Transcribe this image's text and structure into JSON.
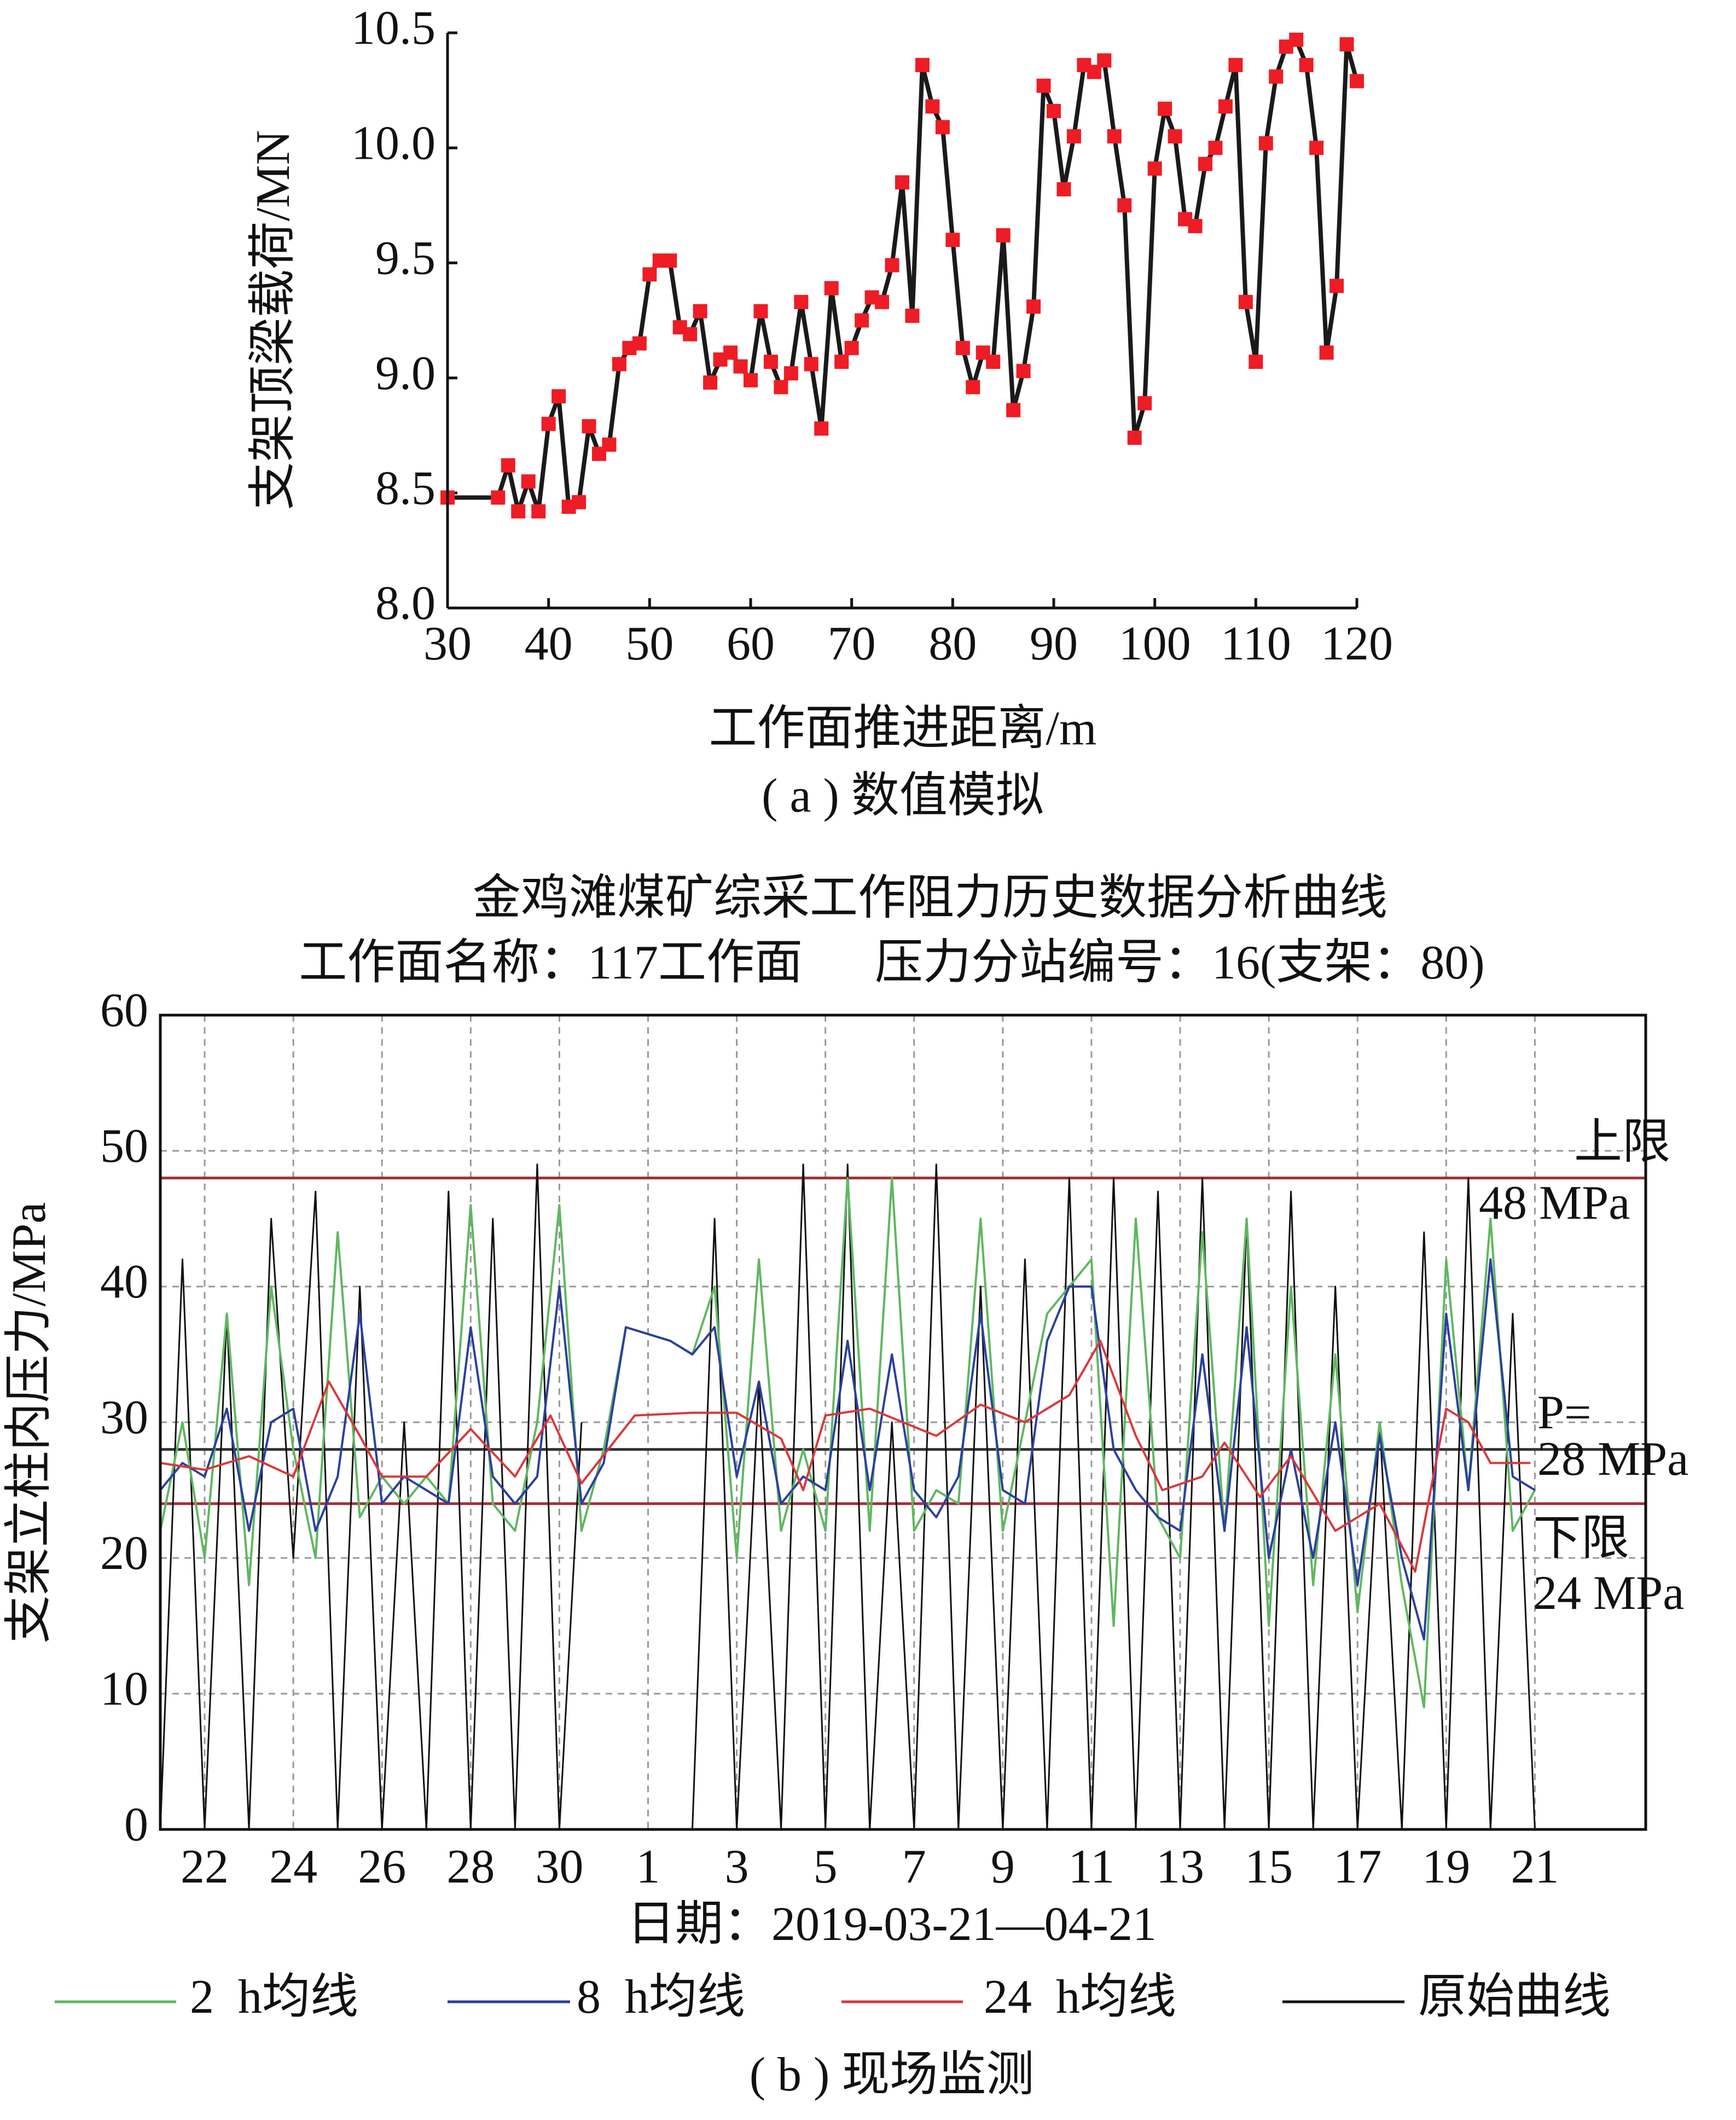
{
  "chart_data": [
    {
      "type": "line",
      "xlabel": "工作面推进距离/m",
      "ylabel": "支架顶梁载荷/MN",
      "caption": "( a ) 数值模拟",
      "color": "#1a1a1a",
      "marker_color": "#ee1c25",
      "xlim": [
        30,
        120
      ],
      "ylim": [
        8,
        10.5
      ],
      "xticks": [
        30,
        40,
        50,
        60,
        70,
        80,
        90,
        100,
        110,
        120
      ],
      "yticks": [
        {
          "value": 8,
          "label": "8.0"
        },
        {
          "value": 8.5,
          "label": "8.5"
        },
        {
          "value": 9,
          "label": "9.0"
        },
        {
          "value": 9.5,
          "label": "9.5"
        },
        {
          "value": 10,
          "label": "10.0"
        },
        {
          "value": 10.5,
          "label": "10.5"
        }
      ],
      "x": [
        30,
        35,
        36,
        37,
        38,
        39,
        40,
        41,
        42,
        43,
        44,
        45,
        46,
        47,
        48,
        49,
        50,
        51,
        52,
        53,
        54,
        55,
        56,
        57,
        58,
        59,
        60,
        61,
        62,
        63,
        64,
        65,
        66,
        67,
        68,
        69,
        70,
        71,
        72,
        73,
        74,
        75,
        76,
        77,
        78,
        79,
        80,
        81,
        82,
        83,
        84,
        85,
        86,
        87,
        88,
        89,
        90,
        91,
        92,
        93,
        94,
        95,
        96,
        97,
        98,
        99,
        100,
        101,
        102,
        103,
        104,
        105,
        106,
        107,
        108,
        109,
        110,
        111,
        112,
        113,
        114,
        115,
        116,
        117,
        118,
        119,
        120
      ],
      "values": [
        8.48,
        8.48,
        8.62,
        8.42,
        8.55,
        8.42,
        8.8,
        8.92,
        8.44,
        8.46,
        8.79,
        8.67,
        8.71,
        9.06,
        9.13,
        9.15,
        9.45,
        9.51,
        9.51,
        9.22,
        9.19,
        9.29,
        8.98,
        9.08,
        9.11,
        9.05,
        8.99,
        9.29,
        9.07,
        8.96,
        9.02,
        9.33,
        9.06,
        8.78,
        9.39,
        9.07,
        9.13,
        9.25,
        9.35,
        9.33,
        9.49,
        9.85,
        9.27,
        10.36,
        10.18,
        10.09,
        9.6,
        9.13,
        8.96,
        9.11,
        9.07,
        9.62,
        8.86,
        9.03,
        9.31,
        10.27,
        10.16,
        9.82,
        10.05,
        10.36,
        10.33,
        10.38,
        10.05,
        9.75,
        8.74,
        8.89,
        9.91,
        10.17,
        10.05,
        9.69,
        9.66,
        9.93,
        10.0,
        10.18,
        10.36,
        9.33,
        9.07,
        10.02,
        10.31,
        10.44,
        10.47,
        10.36,
        10.0,
        9.11,
        9.4,
        10.45,
        10.29
      ]
    },
    {
      "type": "line",
      "title": "金鸡滩煤矿综采工作阻力历史数据分析曲线",
      "subtitle": "工作面名称：117工作面      压力分站编号：16(支架：80)",
      "xlabel": "日期：2019-03-21—04-21",
      "ylabel": "支架立柱内压力/MPa",
      "caption": "( b ) 现场监测",
      "xlim": [
        0,
        33.5
      ],
      "ylim": [
        0,
        60
      ],
      "grid": true,
      "legend": "bottom",
      "xticks": [
        {
          "value": 1,
          "label": "22"
        },
        {
          "value": 3,
          "label": "24"
        },
        {
          "value": 5,
          "label": "26"
        },
        {
          "value": 7,
          "label": "28"
        },
        {
          "value": 9,
          "label": "30"
        },
        {
          "value": 11,
          "label": "1"
        },
        {
          "value": 13,
          "label": "3"
        },
        {
          "value": 15,
          "label": "5"
        },
        {
          "value": 17,
          "label": "7"
        },
        {
          "value": 19,
          "label": "9"
        },
        {
          "value": 21,
          "label": "11"
        },
        {
          "value": 23,
          "label": "13"
        },
        {
          "value": 25,
          "label": "15"
        },
        {
          "value": 27,
          "label": "17"
        },
        {
          "value": 29,
          "label": "19"
        },
        {
          "value": 31,
          "label": "21"
        }
      ],
      "yticks": [
        0,
        10,
        20,
        30,
        40,
        50,
        60
      ],
      "reference_lines": [
        {
          "value": 48,
          "color": "#a0303a",
          "label": "上限",
          "value_label": "48 MPa"
        },
        {
          "value": 28,
          "color": "#333333",
          "label": "P=",
          "value_label": "28 MPa"
        },
        {
          "value": 24,
          "color": "#a0303a",
          "label": "下限",
          "value_label": "24 MPa"
        }
      ],
      "series": [
        {
          "name": "原始曲线",
          "color": "#111111",
          "x": [
            0,
            0.5,
            1,
            1.5,
            2,
            2.5,
            3,
            3.5,
            4,
            4.5,
            5,
            5.5,
            6,
            6.5,
            7,
            7.5,
            8,
            8.5,
            9,
            9.5,
            10,
            10.5,
            11,
            11.5,
            12,
            12.5,
            13,
            13.5,
            14,
            14.5,
            15,
            15.5,
            16,
            16.5,
            17,
            17.5,
            18,
            18.5,
            19,
            19.5,
            20,
            20.5,
            21,
            21.5,
            22,
            22.5,
            23,
            23.5,
            24,
            24.5,
            25,
            25.5,
            26,
            26.5,
            27,
            27.5,
            28,
            28.5,
            29,
            29.5,
            30,
            30.5,
            31
          ],
          "values": [
            0,
            42,
            0,
            38,
            0,
            45,
            20,
            47,
            0,
            40,
            0,
            30,
            0,
            47,
            0,
            45,
            0,
            49,
            0,
            30,
            null,
            null,
            null,
            null,
            0,
            45,
            0,
            33,
            0,
            49,
            0,
            49,
            0,
            30,
            0,
            49,
            0,
            40,
            0,
            42,
            0,
            48,
            0,
            48,
            0,
            47,
            0,
            48,
            0,
            45,
            0,
            47,
            0,
            40,
            0,
            30,
            0,
            44,
            0,
            48,
            0,
            38,
            0
          ]
        },
        {
          "name": "2  h均线",
          "color": "#5fb760",
          "x": [
            0,
            0.5,
            1,
            1.5,
            2,
            2.5,
            3,
            3.5,
            4,
            4.5,
            5,
            5.5,
            6,
            6.5,
            7,
            7.5,
            8,
            8.5,
            9,
            9.5,
            10,
            10.5,
            11.5,
            12,
            12.5,
            13,
            13.5,
            14,
            14.5,
            15,
            15.5,
            16,
            16.5,
            17,
            17.5,
            18,
            18.5,
            19,
            19.5,
            20,
            20.5,
            21,
            21.5,
            22,
            22.5,
            23,
            23.5,
            24,
            24.5,
            25,
            25.5,
            26,
            26.5,
            27,
            27.5,
            28,
            28.5,
            29,
            29.5,
            30,
            30.5,
            31
          ],
          "values": [
            22,
            30,
            20,
            38,
            18,
            40,
            28,
            20,
            44,
            23,
            26,
            24,
            26,
            24,
            46,
            24,
            22,
            30,
            46,
            22,
            28,
            37,
            36,
            35,
            40,
            20,
            42,
            22,
            28,
            22,
            48,
            22,
            48,
            22,
            25,
            24,
            45,
            22,
            30,
            38,
            40,
            42,
            15,
            45,
            23,
            20,
            44,
            22,
            45,
            15,
            40,
            18,
            35,
            16,
            30,
            18,
            9,
            42,
            25,
            45,
            22,
            25
          ]
        },
        {
          "name": "8  h均线",
          "color": "#2b3f9e",
          "x": [
            0,
            0.5,
            1,
            1.5,
            2,
            2.5,
            3,
            3.5,
            4,
            4.5,
            5,
            5.5,
            6,
            6.5,
            7,
            7.5,
            8,
            8.5,
            9,
            9.5,
            10,
            10.5,
            11.5,
            12,
            12.5,
            13,
            13.5,
            14,
            14.5,
            15,
            15.5,
            16,
            16.5,
            17,
            17.5,
            18,
            18.5,
            19,
            19.5,
            20,
            20.5,
            21,
            21.5,
            22,
            22.5,
            23,
            23.5,
            24,
            24.5,
            25,
            25.5,
            26,
            26.5,
            27,
            27.5,
            28,
            28.5,
            29,
            29.5,
            30,
            30.5,
            31
          ],
          "values": [
            25,
            27,
            26,
            31,
            22,
            30,
            31,
            22,
            26,
            38,
            24,
            26,
            25,
            24,
            37,
            26,
            24,
            26,
            40,
            24,
            27,
            37,
            36,
            35,
            37,
            26,
            33,
            24,
            26,
            25,
            36,
            25,
            35,
            25,
            23,
            26,
            38,
            25,
            24,
            36,
            40,
            40,
            28,
            25,
            23,
            22,
            35,
            22,
            37,
            20,
            28,
            20,
            30,
            18,
            29,
            20,
            14,
            38,
            25,
            42,
            26,
            25
          ]
        },
        {
          "name": "24  h均线",
          "color": "#d9383a",
          "x": [
            0,
            1,
            2,
            3,
            3.8,
            4.5,
            5,
            6,
            7,
            8,
            8.8,
            9.5,
            10.7,
            12,
            13,
            14,
            14.5,
            15,
            16,
            17.5,
            18.5,
            19.5,
            20.5,
            21.2,
            22,
            22.6,
            23.5,
            24,
            24.8,
            25.5,
            26.5,
            27.5,
            28.3,
            29,
            29.5,
            30,
            30.9
          ],
          "values": [
            27,
            26.5,
            27.5,
            26,
            33,
            29,
            26,
            26,
            29.5,
            26,
            30.5,
            25.5,
            30.5,
            30.7,
            30.7,
            28.8,
            25,
            30.5,
            31,
            29,
            31.3,
            30,
            32,
            36,
            29,
            25,
            26,
            28.5,
            24.5,
            27.5,
            22,
            24,
            19,
            31,
            30,
            27,
            27
          ]
        }
      ]
    }
  ]
}
